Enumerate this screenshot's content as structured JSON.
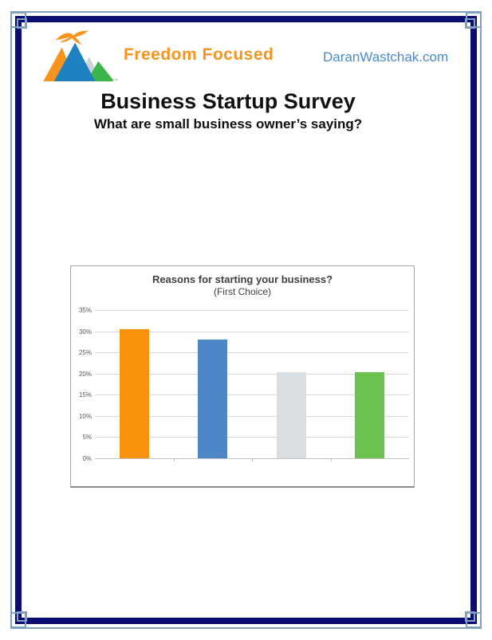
{
  "page": {
    "background": "#FFFFFF",
    "border": {
      "navy": "#0B0C72",
      "accent": "#7FA3BE"
    }
  },
  "header": {
    "brand": "Freedom Focused",
    "brand_color": "#F7941E",
    "website": "DaranWastchak.com",
    "website_color": "#4C8BC8",
    "logo": {
      "bird_color": "#F7941E",
      "mountain_colors": [
        "#F7941E",
        "#1F82C0",
        "#CBD5DA",
        "#3BB54A"
      ],
      "trademark": "™"
    }
  },
  "title_block": {
    "title": "Business Startup Survey",
    "subtitle": "What are small business owner’s saying?"
  },
  "chart_data": {
    "type": "bar",
    "title": "Reasons for starting your business?",
    "subtitle": "(First Choice)",
    "values": [
      30.5,
      28,
      20.4,
      20.4
    ],
    "bar_colors": [
      "#F8920D",
      "#4E87C8",
      "#D9DEE2",
      "#6BC24E"
    ],
    "ylim": [
      0,
      35
    ],
    "y_tick_step": 5,
    "y_tick_suffix": "%",
    "grid": true,
    "legend": "none",
    "x_tick_labels": []
  }
}
